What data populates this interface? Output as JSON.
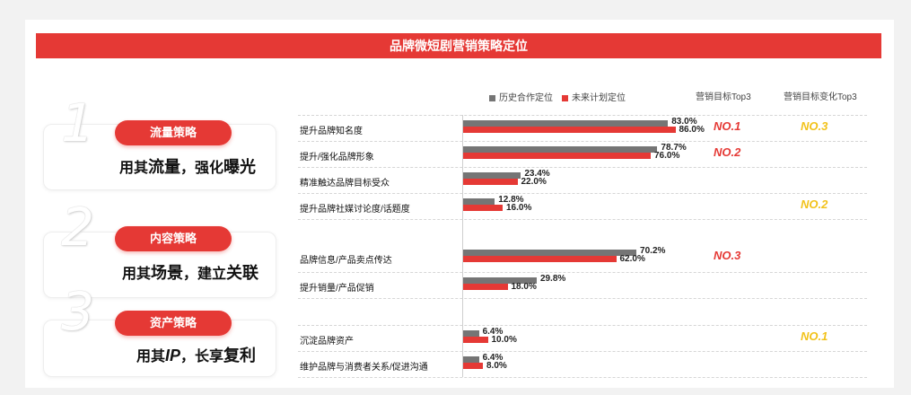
{
  "title": "品牌微短剧营销策略定位",
  "strategies": [
    {
      "num": "1",
      "pill": "流量策略",
      "slogan_a": "用其",
      "slogan_b": "流量",
      "slogan_c": "，强化",
      "slogan_d": "曝光"
    },
    {
      "num": "2",
      "pill": "内容策略",
      "slogan_a": "用其",
      "slogan_b": "场景",
      "slogan_c": "，建立",
      "slogan_d": "关联"
    },
    {
      "num": "3",
      "pill": "资产策略",
      "slogan_a": "用其",
      "slogan_b": "IP",
      "slogan_c": "，长享",
      "slogan_d": "复利"
    }
  ],
  "columns": {
    "goal": "营销目标Top3",
    "change": "营销目标变化Top3"
  },
  "colors": {
    "history": "#757575",
    "future": "#e53935",
    "rank_goal": "#e53935",
    "rank_change": "#f2c21a"
  },
  "chart_data": {
    "type": "bar",
    "orientation": "horizontal",
    "categories": [
      "提升品牌知名度",
      "提升/强化品牌形象",
      "精准触达品牌目标受众",
      "提升品牌社媒讨论度/话题度",
      "品牌信息/产品卖点传达",
      "提升销量/产品促销",
      "沉淀品牌资产",
      "维护品牌与消费者关系/促进沟通"
    ],
    "series": [
      {
        "name": "历史合作定位",
        "values": [
          83.0,
          78.7,
          23.4,
          12.8,
          70.2,
          29.8,
          6.4,
          6.4
        ]
      },
      {
        "name": "未来计划定位",
        "values": [
          86.0,
          76.0,
          22.0,
          16.0,
          62.0,
          18.0,
          10.0,
          8.0
        ]
      }
    ],
    "value_labels": {
      "history": [
        "83.0%",
        "78.7%",
        "23.4%",
        "12.8%",
        "70.2%",
        "29.8%",
        "6.4%",
        "6.4%"
      ],
      "future": [
        "86.0%",
        "76.0%",
        "22.0%",
        "16.0%",
        "62.0%",
        "18.0%",
        "10.0%",
        "8.0%"
      ]
    },
    "goal_top3": [
      "NO.1",
      "NO.2",
      "",
      "",
      "NO.3",
      "",
      "",
      ""
    ],
    "change_top3": [
      "NO.3",
      "",
      "",
      "NO.2",
      "",
      "",
      "NO.1",
      ""
    ],
    "xlim": [
      0,
      100
    ]
  }
}
